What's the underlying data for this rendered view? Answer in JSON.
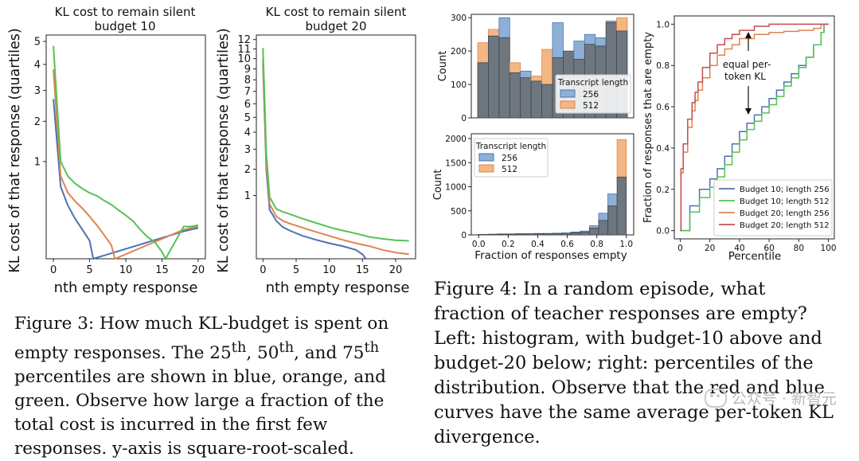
{
  "colors": {
    "blue": "#4c72b0",
    "orange": "#dd8452",
    "green": "#55c255",
    "red": "#c44e52",
    "grey": "#69717a"
  },
  "chart_data": [
    {
      "type": "line",
      "title": "KL cost to remain silent",
      "subtitle": "budget 10",
      "xlabel": "nth empty response",
      "ylabel": "KL cost of that response (quartiles)",
      "yscale": "sqrt",
      "xlim": [
        -1,
        21
      ],
      "ylim": [
        0,
        5.3
      ],
      "xticks": [
        "0",
        "5",
        "10",
        "15",
        "20"
      ],
      "yticks": [
        "1",
        "2",
        "3",
        "4",
        "5"
      ],
      "series": [
        {
          "name": "25th percentile",
          "color": "#4c72b0",
          "x": [
            0,
            1,
            2,
            3,
            4,
            5,
            5.5,
            18,
            19,
            20
          ],
          "y": [
            2.7,
            0.55,
            0.3,
            0.17,
            0.09,
            0.035,
            0.0,
            0.08,
            0.09,
            0.1
          ]
        },
        {
          "name": "50th percentile",
          "color": "#dd8452",
          "x": [
            0,
            1,
            2,
            3,
            4,
            5,
            6,
            7,
            8,
            8.5,
            18,
            19,
            20
          ],
          "y": [
            3.8,
            0.72,
            0.46,
            0.35,
            0.27,
            0.19,
            0.12,
            0.06,
            0.02,
            0.0,
            0.09,
            0.1,
            0.11
          ]
        },
        {
          "name": "75th percentile",
          "color": "#55c255",
          "x": [
            0,
            1,
            2,
            3,
            4,
            5,
            6,
            7,
            8,
            9,
            10,
            11,
            12,
            13,
            14,
            15,
            15.5,
            18,
            19,
            20
          ],
          "y": [
            4.8,
            1.0,
            0.72,
            0.6,
            0.52,
            0.46,
            0.42,
            0.36,
            0.31,
            0.25,
            0.2,
            0.15,
            0.09,
            0.05,
            0.03,
            0.005,
            0.0,
            0.11,
            0.11,
            0.12
          ]
        }
      ]
    },
    {
      "type": "line",
      "title": "KL cost to remain silent",
      "subtitle": "budget 20",
      "xlabel": "nth empty response",
      "ylabel": "KL cost of that response (quartiles)",
      "yscale": "sqrt",
      "xlim": [
        -1,
        23
      ],
      "ylim": [
        0,
        12.5
      ],
      "xticks": [
        "0",
        "5",
        "10",
        "15",
        "20"
      ],
      "yticks": [
        "1",
        "2",
        "3",
        "4",
        "5",
        "6",
        "7",
        "8",
        "9",
        "10",
        "11",
        "12"
      ],
      "series": [
        {
          "name": "25th percentile",
          "color": "#4c72b0",
          "x": [
            0,
            0.5,
            1,
            2,
            3,
            4,
            6,
            8,
            10,
            12,
            14,
            15,
            15.5
          ],
          "y": [
            9.5,
            2.0,
            0.6,
            0.36,
            0.25,
            0.2,
            0.13,
            0.09,
            0.06,
            0.04,
            0.02,
            0.005,
            0.0
          ]
        },
        {
          "name": "50th percentile",
          "color": "#dd8452",
          "x": [
            0,
            0.5,
            1,
            2,
            3,
            4,
            6,
            8,
            10,
            12,
            14,
            16,
            18,
            20,
            22
          ],
          "y": [
            10,
            2.3,
            0.75,
            0.45,
            0.36,
            0.31,
            0.24,
            0.18,
            0.13,
            0.09,
            0.06,
            0.04,
            0.02,
            0.01,
            0.005
          ]
        },
        {
          "name": "75th percentile",
          "color": "#55c255",
          "x": [
            0,
            0.5,
            1,
            2,
            3,
            4,
            6,
            8,
            10,
            12,
            14,
            16,
            18,
            20,
            22
          ],
          "y": [
            11.1,
            2.8,
            0.95,
            0.62,
            0.55,
            0.5,
            0.4,
            0.32,
            0.25,
            0.2,
            0.16,
            0.12,
            0.1,
            0.085,
            0.08
          ]
        }
      ]
    },
    {
      "type": "bar",
      "subtype": "histogram",
      "panel": "budget-10",
      "xlabel": "",
      "ylabel": "Count",
      "ylim": [
        0,
        310
      ],
      "yticks": [
        "0",
        "100",
        "200",
        "300"
      ],
      "legend_title": "Transcript length",
      "legend_location": "center-right",
      "series": [
        {
          "name": "256",
          "color": "#4c72b0",
          "values": [
            165,
            245,
            300,
            135,
            140,
            110,
            100,
            285,
            200,
            230,
            250,
            240,
            290,
            260
          ]
        },
        {
          "name": "512",
          "color": "#dd8452",
          "values": [
            225,
            265,
            240,
            165,
            120,
            125,
            205,
            180,
            200,
            175,
            220,
            215,
            285,
            300
          ]
        }
      ]
    },
    {
      "type": "bar",
      "subtype": "histogram",
      "panel": "budget-20",
      "xlabel": "Fraction of responses empty",
      "ylabel": "Count",
      "xlim": [
        -0.05,
        1.05
      ],
      "ylim": [
        0,
        2100
      ],
      "xticks": [
        "0.0",
        "0.2",
        "0.4",
        "0.6",
        "0.8",
        "1.0"
      ],
      "yticks": [
        "0",
        "500",
        "1000",
        "1500",
        "2000"
      ],
      "legend_title": "Transcript length",
      "legend_location": "top-left",
      "series": [
        {
          "name": "256",
          "color": "#4c72b0",
          "values": [
            10,
            15,
            20,
            20,
            25,
            25,
            30,
            30,
            35,
            40,
            60,
            80,
            190,
            450,
            850,
            1200
          ]
        },
        {
          "name": "512",
          "color": "#dd8452",
          "values": [
            8,
            10,
            15,
            15,
            20,
            20,
            25,
            25,
            30,
            35,
            45,
            60,
            140,
            300,
            600,
            1980
          ]
        }
      ]
    },
    {
      "type": "line",
      "subtype": "cdf",
      "xlabel": "Percentile",
      "ylabel": "Fraction of responses that are empty",
      "xlim": [
        -4,
        104
      ],
      "ylim": [
        -0.04,
        1.04
      ],
      "xticks": [
        "0",
        "20",
        "40",
        "60",
        "80",
        "100"
      ],
      "yticks": [
        "0.0",
        "0.2",
        "0.4",
        "0.6",
        "0.8",
        "1.0"
      ],
      "annotation": {
        "text_line1": "equal per-",
        "text_line2": "token KL"
      },
      "legend_location": "bottom-right",
      "series": [
        {
          "name": "Budget 10; length 256",
          "color": "#4c72b0",
          "x": [
            0,
            6,
            6.5,
            12,
            13,
            20,
            25,
            30,
            35,
            40,
            45,
            50,
            55,
            60,
            65,
            70,
            75,
            80,
            85,
            90,
            95,
            97,
            100
          ],
          "y": [
            0,
            0,
            0.12,
            0.12,
            0.2,
            0.25,
            0.3,
            0.36,
            0.42,
            0.48,
            0.52,
            0.56,
            0.6,
            0.64,
            0.68,
            0.72,
            0.76,
            0.8,
            0.84,
            0.9,
            0.96,
            1.0,
            1.0
          ]
        },
        {
          "name": "Budget 10; length 512",
          "color": "#55c255",
          "x": [
            0,
            6,
            6.5,
            12,
            13,
            20,
            25,
            30,
            35,
            40,
            45,
            50,
            55,
            60,
            65,
            70,
            75,
            80,
            85,
            90,
            95,
            97,
            100
          ],
          "y": [
            0,
            0,
            0.09,
            0.09,
            0.16,
            0.21,
            0.26,
            0.32,
            0.38,
            0.44,
            0.49,
            0.53,
            0.57,
            0.61,
            0.65,
            0.7,
            0.74,
            0.79,
            0.84,
            0.9,
            0.96,
            1.0,
            1.0
          ]
        },
        {
          "name": "Budget 20; length 256",
          "color": "#dd8452",
          "x": [
            0,
            0.5,
            2,
            5,
            8,
            10,
            12,
            15,
            20,
            25,
            30,
            35,
            40,
            50,
            60,
            70,
            80,
            90,
            95,
            100
          ],
          "y": [
            0,
            0.28,
            0.38,
            0.5,
            0.58,
            0.63,
            0.68,
            0.74,
            0.8,
            0.85,
            0.88,
            0.9,
            0.93,
            0.95,
            0.96,
            0.965,
            0.97,
            0.98,
            1.0,
            1.0
          ]
        },
        {
          "name": "Budget 20; length 512",
          "color": "#c44e52",
          "x": [
            0,
            0.5,
            2,
            5,
            8,
            10,
            12,
            15,
            20,
            25,
            30,
            35,
            40,
            50,
            60,
            70,
            80,
            85,
            100
          ],
          "y": [
            0,
            0.3,
            0.42,
            0.54,
            0.62,
            0.67,
            0.72,
            0.79,
            0.86,
            0.9,
            0.93,
            0.95,
            0.97,
            0.99,
            1.0,
            1.0,
            1.0,
            1.0,
            1.0
          ]
        }
      ]
    }
  ],
  "figure3_caption": {
    "lead": "Figure 3: How much KL-budget is spent on empty responses. The 25",
    "sup1": "th",
    "mid1": ", 50",
    "sup2": "th",
    "mid2": ", and 75",
    "sup3": "th",
    "tail": " percentiles are shown in blue, orange, and green. Observe how large a fraction of the total cost is incurred in the first few responses. y-axis is square-root-scaled."
  },
  "figure4_caption": {
    "text": "Figure 4: In a random episode, what fraction of teacher responses are empty? Left: histogram, with budget-10 above and budget-20 below; right: percentiles of the distribution. Observe that the red and blue curves have the same average per-token KL divergence."
  },
  "watermark": {
    "text": "公众号 · 新智元"
  }
}
